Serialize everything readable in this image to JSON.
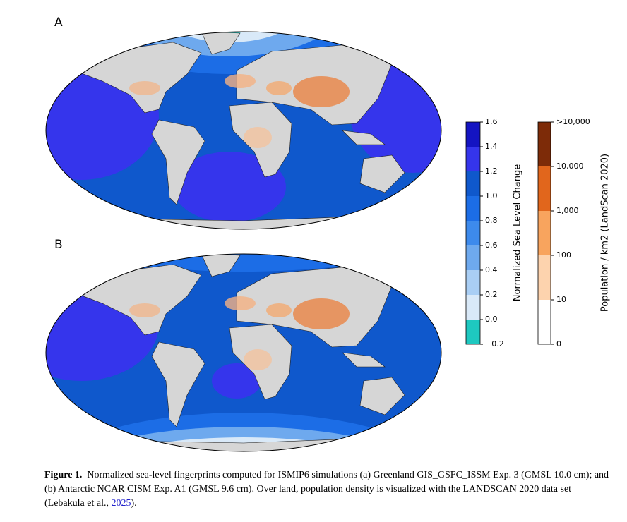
{
  "panels": [
    {
      "label": "A"
    },
    {
      "label": "B"
    }
  ],
  "sea_level_colorbar": {
    "label": "Normalized Sea Level Change",
    "ticks": [
      -0.2,
      0.0,
      0.2,
      0.4,
      0.6,
      0.8,
      1.0,
      1.2,
      1.4,
      1.6
    ],
    "tick_labels": [
      "−0.2",
      "0.0",
      "0.2",
      "0.4",
      "0.6",
      "0.8",
      "1.0",
      "1.2",
      "1.4",
      "1.6"
    ],
    "colors": [
      "#1ec8c0",
      "#d9e9f8",
      "#a9cef4",
      "#6ea9ee",
      "#3d8aec",
      "#1c6de6",
      "#0f58cc",
      "#3535ec",
      "#1414c2"
    ]
  },
  "population_colorbar": {
    "label": "Population / km2 (LandScan 2020)",
    "tick_labels": [
      "0",
      "10",
      "100",
      "1,000",
      "10,000",
      ">10,000"
    ],
    "colors": [
      "#ffffff",
      "#fdd3ae",
      "#f8a45e",
      "#e1661c",
      "#7d2b08"
    ]
  },
  "caption": {
    "label": "Figure 1.",
    "text": "Normalized sea-level fingerprints computed for ISMIP6 simulations (a) Greenland GIS_GSFC_ISSM Exp. 3 (GMSL 10.0 cm); and (b) Antarctic NCAR CISM Exp. A1 (GMSL 9.6 cm). Over land, population density is visualized with the LANDSCAN 2020 data set (Lebakula et al., ",
    "link": "2025",
    "end": ")."
  }
}
